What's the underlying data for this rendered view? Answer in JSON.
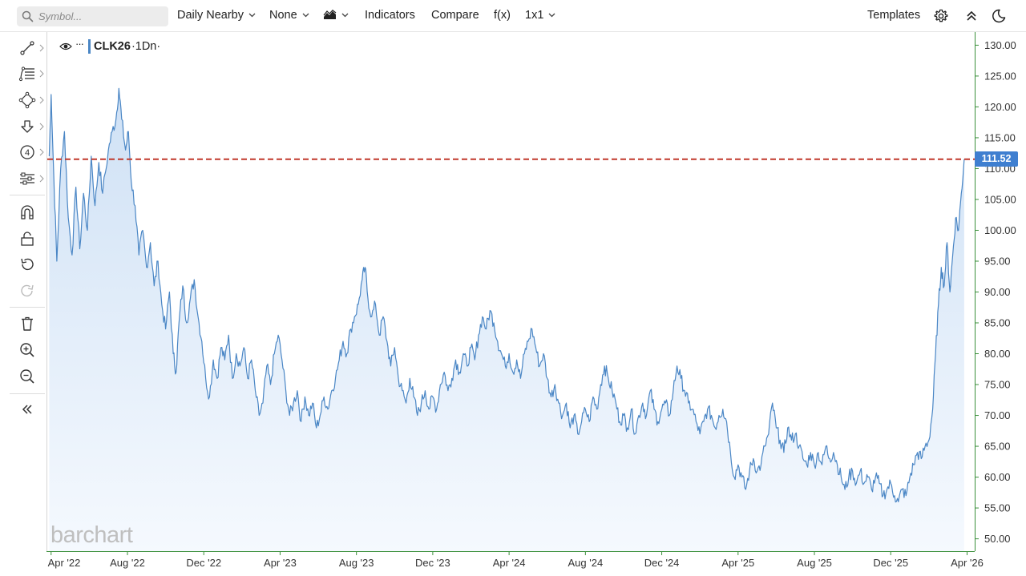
{
  "toolbar": {
    "search_placeholder": "Symbol...",
    "period_label": "Daily Nearby",
    "overlay_label": "None",
    "indicators_label": "Indicators",
    "compare_label": "Compare",
    "fx_label": "f(x)",
    "layout_label": "1x1",
    "templates_label": "Templates",
    "icons": [
      "search-icon",
      "chevron-down-icon",
      "area-chart-icon",
      "gear-icon",
      "collapse-up-icon",
      "moon-icon"
    ]
  },
  "left_toolbar": {
    "icons": [
      "trendline-icon",
      "fib-icon",
      "shape-icon",
      "arrow-down-icon",
      "count-icon",
      "measure-icon",
      "magnet-icon",
      "lock-icon",
      "undo-icon",
      "redo-icon",
      "trash-icon",
      "zoom-in-icon",
      "zoom-out-icon",
      "collapse-left-icon"
    ]
  },
  "legend": {
    "symbol": "CLK26",
    "timeframe": "·1Dn·"
  },
  "watermark": "barchart",
  "colors": {
    "line": "#4a86c5",
    "area_top": "#cfe1f5",
    "area_bottom": "#f5f9fe",
    "last_price_line": "#c0392b",
    "price_tag": "#3f7fd0"
  },
  "chart_data": {
    "type": "area",
    "series_type": "daily nearby futures close",
    "last_price": 111.52,
    "last_price_label": "111.52",
    "ylim": [
      48,
      132
    ],
    "yticks": [
      "130.00",
      "125.00",
      "120.00",
      "115.00",
      "110.00",
      "105.00",
      "100.00",
      "95.00",
      "90.00",
      "85.00",
      "80.00",
      "75.00",
      "70.00",
      "65.00",
      "60.00",
      "55.00",
      "50.00"
    ],
    "xlim": [
      -0.2,
      48.4
    ],
    "xticks": [
      {
        "x": 0,
        "label": "Apr '22"
      },
      {
        "x": 4,
        "label": "Aug '22"
      },
      {
        "x": 8,
        "label": "Dec '22"
      },
      {
        "x": 12,
        "label": "Apr '23"
      },
      {
        "x": 16,
        "label": "Aug '23"
      },
      {
        "x": 20,
        "label": "Dec '23"
      },
      {
        "x": 24,
        "label": "Apr '24"
      },
      {
        "x": 28,
        "label": "Aug '24"
      },
      {
        "x": 32,
        "label": "Dec '24"
      },
      {
        "x": 36,
        "label": "Apr '25"
      },
      {
        "x": 40,
        "label": "Aug '25"
      },
      {
        "x": 44,
        "label": "Dec '25"
      },
      {
        "x": 48,
        "label": "Apr '26"
      }
    ],
    "x_unit": "months from Apr 2022",
    "points": [
      [
        -0.1,
        112
      ],
      [
        0,
        122
      ],
      [
        0.15,
        108
      ],
      [
        0.3,
        95
      ],
      [
        0.5,
        110
      ],
      [
        0.7,
        116
      ],
      [
        0.9,
        102
      ],
      [
        1.1,
        96
      ],
      [
        1.3,
        107
      ],
      [
        1.5,
        97
      ],
      [
        1.7,
        106
      ],
      [
        1.9,
        100
      ],
      [
        2.1,
        112
      ],
      [
        2.3,
        104
      ],
      [
        2.5,
        111
      ],
      [
        2.7,
        106
      ],
      [
        3.0,
        113
      ],
      [
        3.2,
        116
      ],
      [
        3.4,
        118
      ],
      [
        3.55,
        123
      ],
      [
        3.7,
        118
      ],
      [
        3.9,
        113
      ],
      [
        4.05,
        116
      ],
      [
        4.2,
        108
      ],
      [
        4.4,
        104
      ],
      [
        4.6,
        96
      ],
      [
        4.8,
        100
      ],
      [
        5.0,
        94
      ],
      [
        5.2,
        98
      ],
      [
        5.4,
        91
      ],
      [
        5.6,
        95
      ],
      [
        5.8,
        88
      ],
      [
        6.0,
        84
      ],
      [
        6.2,
        90
      ],
      [
        6.4,
        80
      ],
      [
        6.55,
        77
      ],
      [
        6.7,
        85
      ],
      [
        6.9,
        91
      ],
      [
        7.1,
        85
      ],
      [
        7.3,
        89
      ],
      [
        7.5,
        92
      ],
      [
        7.7,
        86
      ],
      [
        7.9,
        82
      ],
      [
        8.1,
        76
      ],
      [
        8.3,
        73
      ],
      [
        8.5,
        79
      ],
      [
        8.7,
        76
      ],
      [
        8.9,
        81
      ],
      [
        9.1,
        79
      ],
      [
        9.3,
        83
      ],
      [
        9.5,
        76
      ],
      [
        9.7,
        80
      ],
      [
        9.9,
        78
      ],
      [
        10.1,
        81
      ],
      [
        10.3,
        76
      ],
      [
        10.5,
        79
      ],
      [
        10.7,
        74
      ],
      [
        10.9,
        70
      ],
      [
        11.1,
        72
      ],
      [
        11.3,
        78
      ],
      [
        11.5,
        75
      ],
      [
        11.7,
        80
      ],
      [
        11.9,
        83
      ],
      [
        12.1,
        79
      ],
      [
        12.3,
        74
      ],
      [
        12.5,
        70
      ],
      [
        12.7,
        72
      ],
      [
        12.9,
        74
      ],
      [
        13.1,
        69
      ],
      [
        13.3,
        73
      ],
      [
        13.5,
        70
      ],
      [
        13.7,
        72
      ],
      [
        13.9,
        68
      ],
      [
        14.1,
        70
      ],
      [
        14.3,
        73
      ],
      [
        14.5,
        71
      ],
      [
        14.7,
        74
      ],
      [
        14.9,
        76
      ],
      [
        15.1,
        79
      ],
      [
        15.3,
        82
      ],
      [
        15.5,
        80
      ],
      [
        15.7,
        84
      ],
      [
        15.9,
        86
      ],
      [
        16.1,
        88
      ],
      [
        16.3,
        92
      ],
      [
        16.45,
        94
      ],
      [
        16.6,
        89
      ],
      [
        16.8,
        86
      ],
      [
        17.0,
        88
      ],
      [
        17.2,
        83
      ],
      [
        17.4,
        86
      ],
      [
        17.6,
        82
      ],
      [
        17.8,
        78
      ],
      [
        18.0,
        81
      ],
      [
        18.2,
        76
      ],
      [
        18.4,
        74
      ],
      [
        18.6,
        72
      ],
      [
        18.8,
        76
      ],
      [
        19.0,
        73
      ],
      [
        19.2,
        70
      ],
      [
        19.4,
        72
      ],
      [
        19.6,
        74
      ],
      [
        19.8,
        71
      ],
      [
        20.0,
        73
      ],
      [
        20.2,
        71
      ],
      [
        20.4,
        75
      ],
      [
        20.6,
        77
      ],
      [
        20.8,
        74
      ],
      [
        21.0,
        76
      ],
      [
        21.2,
        79
      ],
      [
        21.4,
        77
      ],
      [
        21.6,
        80
      ],
      [
        21.8,
        78
      ],
      [
        22.0,
        81
      ],
      [
        22.2,
        79
      ],
      [
        22.4,
        83
      ],
      [
        22.6,
        86
      ],
      [
        22.8,
        84
      ],
      [
        23.0,
        87
      ],
      [
        23.2,
        85
      ],
      [
        23.4,
        82
      ],
      [
        23.6,
        80
      ],
      [
        23.8,
        78
      ],
      [
        24.0,
        80
      ],
      [
        24.2,
        77
      ],
      [
        24.4,
        79
      ],
      [
        24.6,
        76
      ],
      [
        24.8,
        80
      ],
      [
        25.0,
        82
      ],
      [
        25.2,
        84
      ],
      [
        25.4,
        81
      ],
      [
        25.6,
        78
      ],
      [
        25.8,
        80
      ],
      [
        26.0,
        76
      ],
      [
        26.2,
        73
      ],
      [
        26.4,
        75
      ],
      [
        26.6,
        72
      ],
      [
        26.8,
        70
      ],
      [
        27.0,
        72
      ],
      [
        27.2,
        68
      ],
      [
        27.4,
        70
      ],
      [
        27.6,
        67
      ],
      [
        27.8,
        69
      ],
      [
        28.0,
        71
      ],
      [
        28.2,
        69
      ],
      [
        28.4,
        73
      ],
      [
        28.6,
        71
      ],
      [
        28.8,
        75
      ],
      [
        29.0,
        78
      ],
      [
        29.2,
        76
      ],
      [
        29.4,
        74
      ],
      [
        29.6,
        72
      ],
      [
        29.8,
        69
      ],
      [
        30.0,
        70
      ],
      [
        30.2,
        68
      ],
      [
        30.4,
        71
      ],
      [
        30.6,
        67
      ],
      [
        30.8,
        70
      ],
      [
        31.0,
        72
      ],
      [
        31.2,
        70
      ],
      [
        31.4,
        74
      ],
      [
        31.6,
        71
      ],
      [
        31.8,
        69
      ],
      [
        32.0,
        71
      ],
      [
        32.2,
        72
      ],
      [
        32.4,
        70
      ],
      [
        32.6,
        74
      ],
      [
        32.8,
        78
      ],
      [
        33.0,
        76
      ],
      [
        33.2,
        74
      ],
      [
        33.4,
        72
      ],
      [
        33.6,
        71
      ],
      [
        33.8,
        69
      ],
      [
        34.0,
        67
      ],
      [
        34.2,
        69
      ],
      [
        34.4,
        71
      ],
      [
        34.6,
        70
      ],
      [
        34.8,
        68
      ],
      [
        35.0,
        70
      ],
      [
        35.2,
        71
      ],
      [
        35.4,
        69
      ],
      [
        35.6,
        64
      ],
      [
        35.8,
        60
      ],
      [
        36.0,
        62
      ],
      [
        36.2,
        60
      ],
      [
        36.4,
        58
      ],
      [
        36.6,
        61
      ],
      [
        36.8,
        63
      ],
      [
        37.0,
        61
      ],
      [
        37.2,
        62
      ],
      [
        37.4,
        65
      ],
      [
        37.6,
        67
      ],
      [
        37.8,
        72
      ],
      [
        38.0,
        68
      ],
      [
        38.2,
        66
      ],
      [
        38.4,
        64
      ],
      [
        38.6,
        68
      ],
      [
        38.8,
        66
      ],
      [
        39.0,
        67
      ],
      [
        39.2,
        65
      ],
      [
        39.4,
        63
      ],
      [
        39.6,
        62
      ],
      [
        39.8,
        64
      ],
      [
        40.0,
        62
      ],
      [
        40.2,
        64
      ],
      [
        40.4,
        62
      ],
      [
        40.6,
        65
      ],
      [
        40.8,
        63
      ],
      [
        41.0,
        64
      ],
      [
        41.2,
        62
      ],
      [
        41.4,
        60
      ],
      [
        41.6,
        58
      ],
      [
        41.8,
        60
      ],
      [
        42.0,
        61
      ],
      [
        42.2,
        59
      ],
      [
        42.4,
        61
      ],
      [
        42.6,
        59
      ],
      [
        42.8,
        60
      ],
      [
        43.0,
        58
      ],
      [
        43.2,
        60
      ],
      [
        43.4,
        59
      ],
      [
        43.6,
        57
      ],
      [
        43.8,
        58
      ],
      [
        44.0,
        59
      ],
      [
        44.2,
        57
      ],
      [
        44.4,
        56
      ],
      [
        44.6,
        58
      ],
      [
        44.8,
        57
      ],
      [
        45.0,
        60
      ],
      [
        45.2,
        62
      ],
      [
        45.4,
        64
      ],
      [
        45.6,
        63
      ],
      [
        45.8,
        65
      ],
      [
        46.0,
        66
      ],
      [
        46.2,
        71
      ],
      [
        46.35,
        80
      ],
      [
        46.5,
        88
      ],
      [
        46.65,
        94
      ],
      [
        46.8,
        91
      ],
      [
        46.95,
        98
      ],
      [
        47.1,
        90
      ],
      [
        47.25,
        96
      ],
      [
        47.4,
        102
      ],
      [
        47.55,
        100
      ],
      [
        47.7,
        106
      ],
      [
        47.85,
        111.52
      ]
    ]
  }
}
